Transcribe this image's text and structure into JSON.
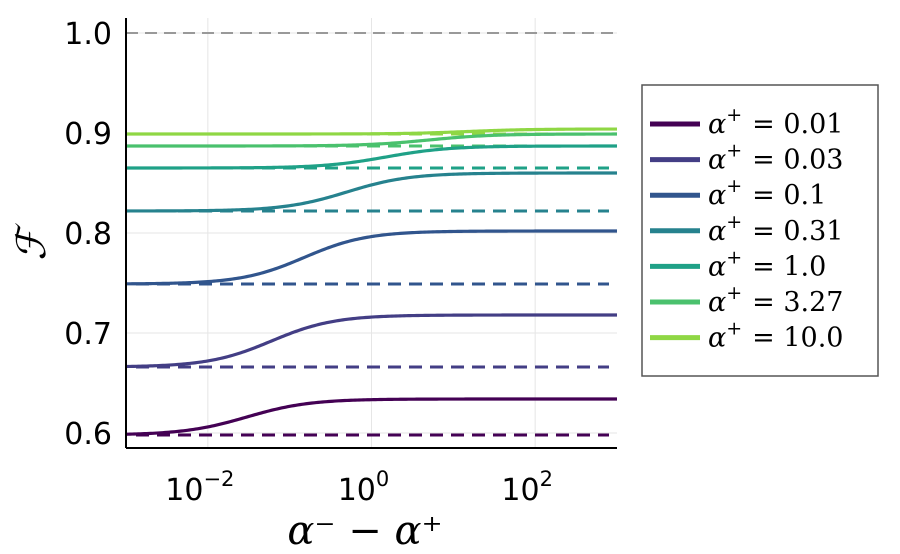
{
  "chart_data": {
    "type": "line",
    "xscale": "log",
    "xlim": [
      0.001,
      1000
    ],
    "ylim": [
      0.585,
      1.015
    ],
    "xticks": [
      {
        "value": 0.01,
        "base": "10",
        "exp": "−2"
      },
      {
        "value": 1,
        "base": "10",
        "exp": "0"
      },
      {
        "value": 100,
        "base": "10",
        "exp": "2"
      }
    ],
    "yticks": [
      {
        "value": 0.6,
        "label": "0.6"
      },
      {
        "value": 0.7,
        "label": "0.7"
      },
      {
        "value": 0.8,
        "label": "0.8"
      },
      {
        "value": 0.9,
        "label": "0.9"
      },
      {
        "value": 1.0,
        "label": "1.0"
      }
    ],
    "xlabel": "α⁻ − α⁺",
    "ylabel": "ℱ",
    "grid": true,
    "legend_position": "outside-right",
    "reference_line": {
      "y": 1.0,
      "color": "#999999",
      "style": "dashed"
    },
    "series": [
      {
        "name": "α⁺ = 0.01",
        "legend_value": "0.01",
        "color": "#440154",
        "start": 0.598,
        "end": 0.634,
        "midpoint_x": 0.03,
        "baseline": 0.598
      },
      {
        "name": "α⁺ = 0.03",
        "legend_value": "0.03",
        "color": "#433e85",
        "start": 0.666,
        "end": 0.718,
        "midpoint_x": 0.06,
        "baseline": 0.666
      },
      {
        "name": "α⁺ = 0.1",
        "legend_value": "0.1",
        "color": "#31558d",
        "start": 0.749,
        "end": 0.802,
        "midpoint_x": 0.15,
        "baseline": 0.749
      },
      {
        "name": "α⁺ = 0.31",
        "legend_value": "0.31",
        "color": "#26828e",
        "start": 0.822,
        "end": 0.86,
        "midpoint_x": 0.5,
        "baseline": 0.822
      },
      {
        "name": "α⁺ = 1.0",
        "legend_value": "1.0",
        "color": "#1fa187",
        "start": 0.865,
        "end": 0.887,
        "midpoint_x": 1.5,
        "baseline": 0.865
      },
      {
        "name": "α⁺ = 3.27",
        "legend_value": "3.27",
        "color": "#4ac16d",
        "start": 0.887,
        "end": 0.899,
        "midpoint_x": 5,
        "baseline": 0.887
      },
      {
        "name": "α⁺ = 10.0",
        "legend_value": "10.0",
        "color": "#8fd744",
        "start": 0.899,
        "end": 0.904,
        "midpoint_x": 15,
        "baseline": 0.899
      }
    ]
  }
}
